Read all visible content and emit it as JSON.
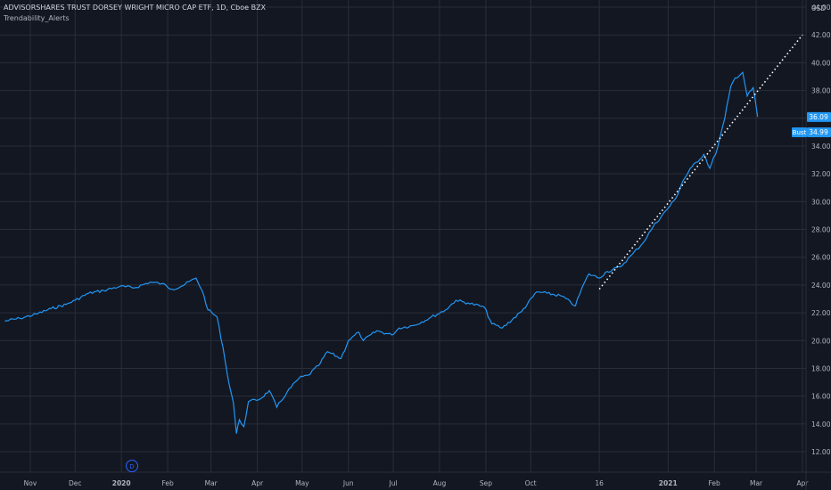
{
  "header": {
    "symbol_line": "ADVISORSHARES TRUST DORSEY WRIGHT MICRO CAP ETF, 1D, Cboe BZX",
    "indicator": "Trendability_Alerts"
  },
  "currency": "USD",
  "event_badge": "D",
  "price_label": {
    "value": "36.09",
    "color": "#2196f3"
  },
  "alert_label": {
    "tag": "Bust",
    "value": "34.99",
    "color": "#2196f3"
  },
  "colors": {
    "background": "#131722",
    "grid": "#2a2e39",
    "series": "#2196f3",
    "text": "#b2b5be",
    "trendline": "#ffffff"
  },
  "chart_data": {
    "type": "line",
    "ylim": [
      11,
      44
    ],
    "y_ticks": [
      "12.00",
      "14.00",
      "16.00",
      "18.00",
      "20.00",
      "22.00",
      "24.00",
      "26.00",
      "28.00",
      "30.00",
      "32.00",
      "34.00",
      "36.00",
      "38.00",
      "40.00",
      "42.00",
      "44.00"
    ],
    "x_ticks": [
      {
        "label": "Nov",
        "date": "2019-11-01"
      },
      {
        "label": "Dec",
        "date": "2019-12-01"
      },
      {
        "label": "2020",
        "date": "2020-01-01"
      },
      {
        "label": "Feb",
        "date": "2020-02-01"
      },
      {
        "label": "Mar",
        "date": "2020-03-01"
      },
      {
        "label": "Apr",
        "date": "2020-04-01"
      },
      {
        "label": "May",
        "date": "2020-05-01"
      },
      {
        "label": "Jun",
        "date": "2020-06-01"
      },
      {
        "label": "Jul",
        "date": "2020-07-01"
      },
      {
        "label": "Aug",
        "date": "2020-08-01"
      },
      {
        "label": "Sep",
        "date": "2020-09-01"
      },
      {
        "label": "Oct",
        "date": "2020-10-01"
      },
      {
        "label": "16",
        "date": "2020-11-16"
      },
      {
        "label": "2021",
        "date": "2021-01-01"
      },
      {
        "label": "Feb",
        "date": "2021-02-01"
      },
      {
        "label": "Mar",
        "date": "2021-03-01"
      },
      {
        "label": "Apr",
        "date": "2021-04-01"
      }
    ],
    "series": [
      {
        "points": [
          [
            "2019-10-15",
            21.4
          ],
          [
            "2019-10-25",
            21.6
          ],
          [
            "2019-11-05",
            21.9
          ],
          [
            "2019-11-15",
            22.3
          ],
          [
            "2019-11-25",
            22.6
          ],
          [
            "2019-12-01",
            22.9
          ],
          [
            "2019-12-10",
            23.4
          ],
          [
            "2019-12-20",
            23.6
          ],
          [
            "2019-12-31",
            23.9
          ],
          [
            "2020-01-10",
            23.8
          ],
          [
            "2020-01-20",
            24.2
          ],
          [
            "2020-01-28",
            24.1
          ],
          [
            "2020-02-04",
            23.7
          ],
          [
            "2020-02-10",
            23.9
          ],
          [
            "2020-02-20",
            24.5
          ],
          [
            "2020-02-24",
            23.6
          ],
          [
            "2020-02-28",
            22.2
          ],
          [
            "2020-03-05",
            21.7
          ],
          [
            "2020-03-09",
            19.5
          ],
          [
            "2020-03-12",
            17.5
          ],
          [
            "2020-03-16",
            15.5
          ],
          [
            "2020-03-18",
            13.3
          ],
          [
            "2020-03-20",
            14.3
          ],
          [
            "2020-03-23",
            13.8
          ],
          [
            "2020-03-26",
            15.6
          ],
          [
            "2020-04-03",
            15.8
          ],
          [
            "2020-04-09",
            16.4
          ],
          [
            "2020-04-14",
            15.2
          ],
          [
            "2020-04-21",
            16.3
          ],
          [
            "2020-04-29",
            17.3
          ],
          [
            "2020-05-05",
            17.5
          ],
          [
            "2020-05-12",
            18.2
          ],
          [
            "2020-05-18",
            19.2
          ],
          [
            "2020-05-27",
            18.7
          ],
          [
            "2020-06-01",
            20.0
          ],
          [
            "2020-06-08",
            20.6
          ],
          [
            "2020-06-11",
            20.0
          ],
          [
            "2020-06-20",
            20.7
          ],
          [
            "2020-06-30",
            20.4
          ],
          [
            "2020-07-05",
            20.9
          ],
          [
            "2020-07-15",
            21.1
          ],
          [
            "2020-07-25",
            21.6
          ],
          [
            "2020-08-05",
            22.2
          ],
          [
            "2020-08-12",
            22.9
          ],
          [
            "2020-08-20",
            22.7
          ],
          [
            "2020-08-31",
            22.4
          ],
          [
            "2020-09-05",
            21.2
          ],
          [
            "2020-09-12",
            20.9
          ],
          [
            "2020-09-25",
            22.1
          ],
          [
            "2020-10-05",
            23.5
          ],
          [
            "2020-10-12",
            23.4
          ],
          [
            "2020-10-22",
            23.2
          ],
          [
            "2020-10-31",
            22.5
          ],
          [
            "2020-11-04",
            23.7
          ],
          [
            "2020-11-09",
            24.8
          ],
          [
            "2020-11-16",
            24.5
          ],
          [
            "2020-11-20",
            24.9
          ],
          [
            "2020-11-30",
            25.3
          ],
          [
            "2020-12-08",
            26.2
          ],
          [
            "2020-12-15",
            27.0
          ],
          [
            "2020-12-22",
            28.2
          ],
          [
            "2020-12-31",
            29.4
          ],
          [
            "2021-01-06",
            30.2
          ],
          [
            "2021-01-11",
            31.5
          ],
          [
            "2021-01-17",
            32.5
          ],
          [
            "2021-01-25",
            33.4
          ],
          [
            "2021-01-29",
            32.4
          ],
          [
            "2021-02-03",
            33.8
          ],
          [
            "2021-02-08",
            36.0
          ],
          [
            "2021-02-12",
            38.3
          ],
          [
            "2021-02-15",
            38.9
          ],
          [
            "2021-02-20",
            39.3
          ],
          [
            "2021-02-23",
            37.6
          ],
          [
            "2021-02-27",
            38.2
          ],
          [
            "2021-03-02",
            36.1
          ]
        ]
      }
    ],
    "trendline": {
      "start": [
        "2020-11-16",
        23.7
      ],
      "end": [
        "2021-04-01",
        42.0
      ],
      "style": "dotted"
    }
  }
}
